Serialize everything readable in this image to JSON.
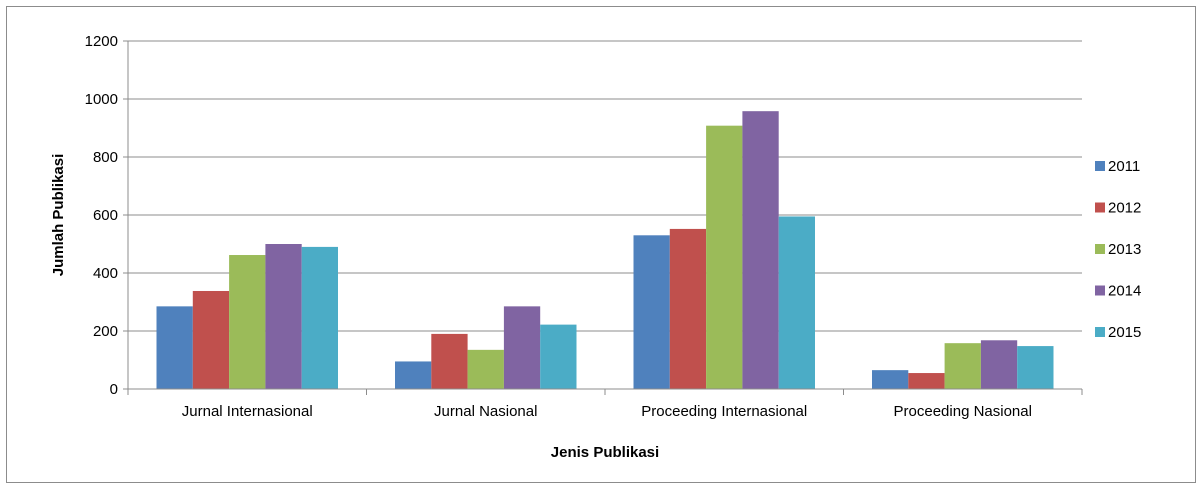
{
  "chart_data": {
    "type": "bar",
    "title": "",
    "xlabel": "Jenis Publikasi",
    "ylabel": "Jumlah Publikasi",
    "ylim": [
      0,
      1200
    ],
    "yticks": [
      0,
      200,
      400,
      600,
      800,
      1000,
      1200
    ],
    "grid": true,
    "legend_position": "right",
    "categories": [
      "Jurnal Internasional",
      "Jurnal Nasional",
      "Proceeding Internasional",
      "Proceeding Nasional"
    ],
    "series": [
      {
        "name": "2011",
        "color": "#4F81BD",
        "values": [
          285,
          95,
          530,
          65
        ]
      },
      {
        "name": "2012",
        "color": "#C0504D",
        "values": [
          338,
          190,
          552,
          55
        ]
      },
      {
        "name": "2013",
        "color": "#9BBB59",
        "values": [
          462,
          135,
          908,
          158
        ]
      },
      {
        "name": "2014",
        "color": "#8064A2",
        "values": [
          500,
          285,
          958,
          168
        ]
      },
      {
        "name": "2015",
        "color": "#4BACC6",
        "values": [
          490,
          222,
          595,
          148
        ]
      }
    ]
  }
}
